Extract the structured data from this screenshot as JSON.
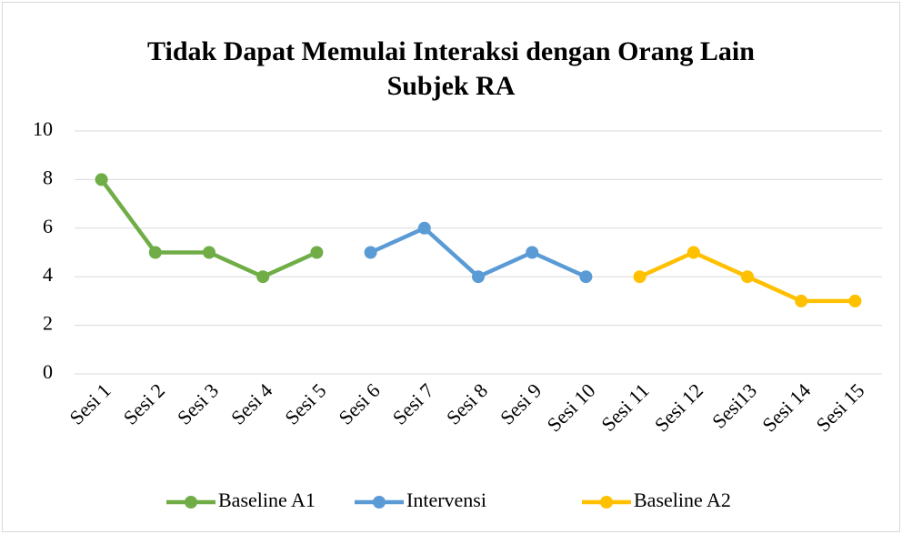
{
  "chart_data": {
    "type": "line",
    "title": "Tidak Dapat Memulai Interaksi dengan Orang Lain Subjek RA",
    "categories": [
      "Sesi 1",
      "Sesi 2",
      "Sesi 3",
      "Sesi 4",
      "Sesi 5",
      "Sesi 6",
      "Sesi 7",
      "Sesi 8",
      "Sesi 9",
      "Sesi 10",
      "Sesi 11",
      "Sesi 12",
      "Sesi13",
      "Sesi 14",
      "Sesi 15"
    ],
    "series": [
      {
        "name": "Baseline A1",
        "color": "#70ad47",
        "values": [
          8,
          5,
          5,
          4,
          5,
          null,
          null,
          null,
          null,
          null,
          null,
          null,
          null,
          null,
          null
        ]
      },
      {
        "name": "Intervensi",
        "color": "#5b9bd5",
        "values": [
          null,
          null,
          null,
          null,
          null,
          5,
          6,
          4,
          5,
          4,
          null,
          null,
          null,
          null,
          null
        ]
      },
      {
        "name": "Baseline A2",
        "color": "#ffc000",
        "values": [
          null,
          null,
          null,
          null,
          null,
          null,
          null,
          null,
          null,
          null,
          4,
          5,
          4,
          3,
          3
        ]
      }
    ],
    "ylim": [
      0,
      10
    ],
    "yticks": [
      0,
      2,
      4,
      6,
      8,
      10
    ],
    "grid": true,
    "legend": "bottom"
  }
}
